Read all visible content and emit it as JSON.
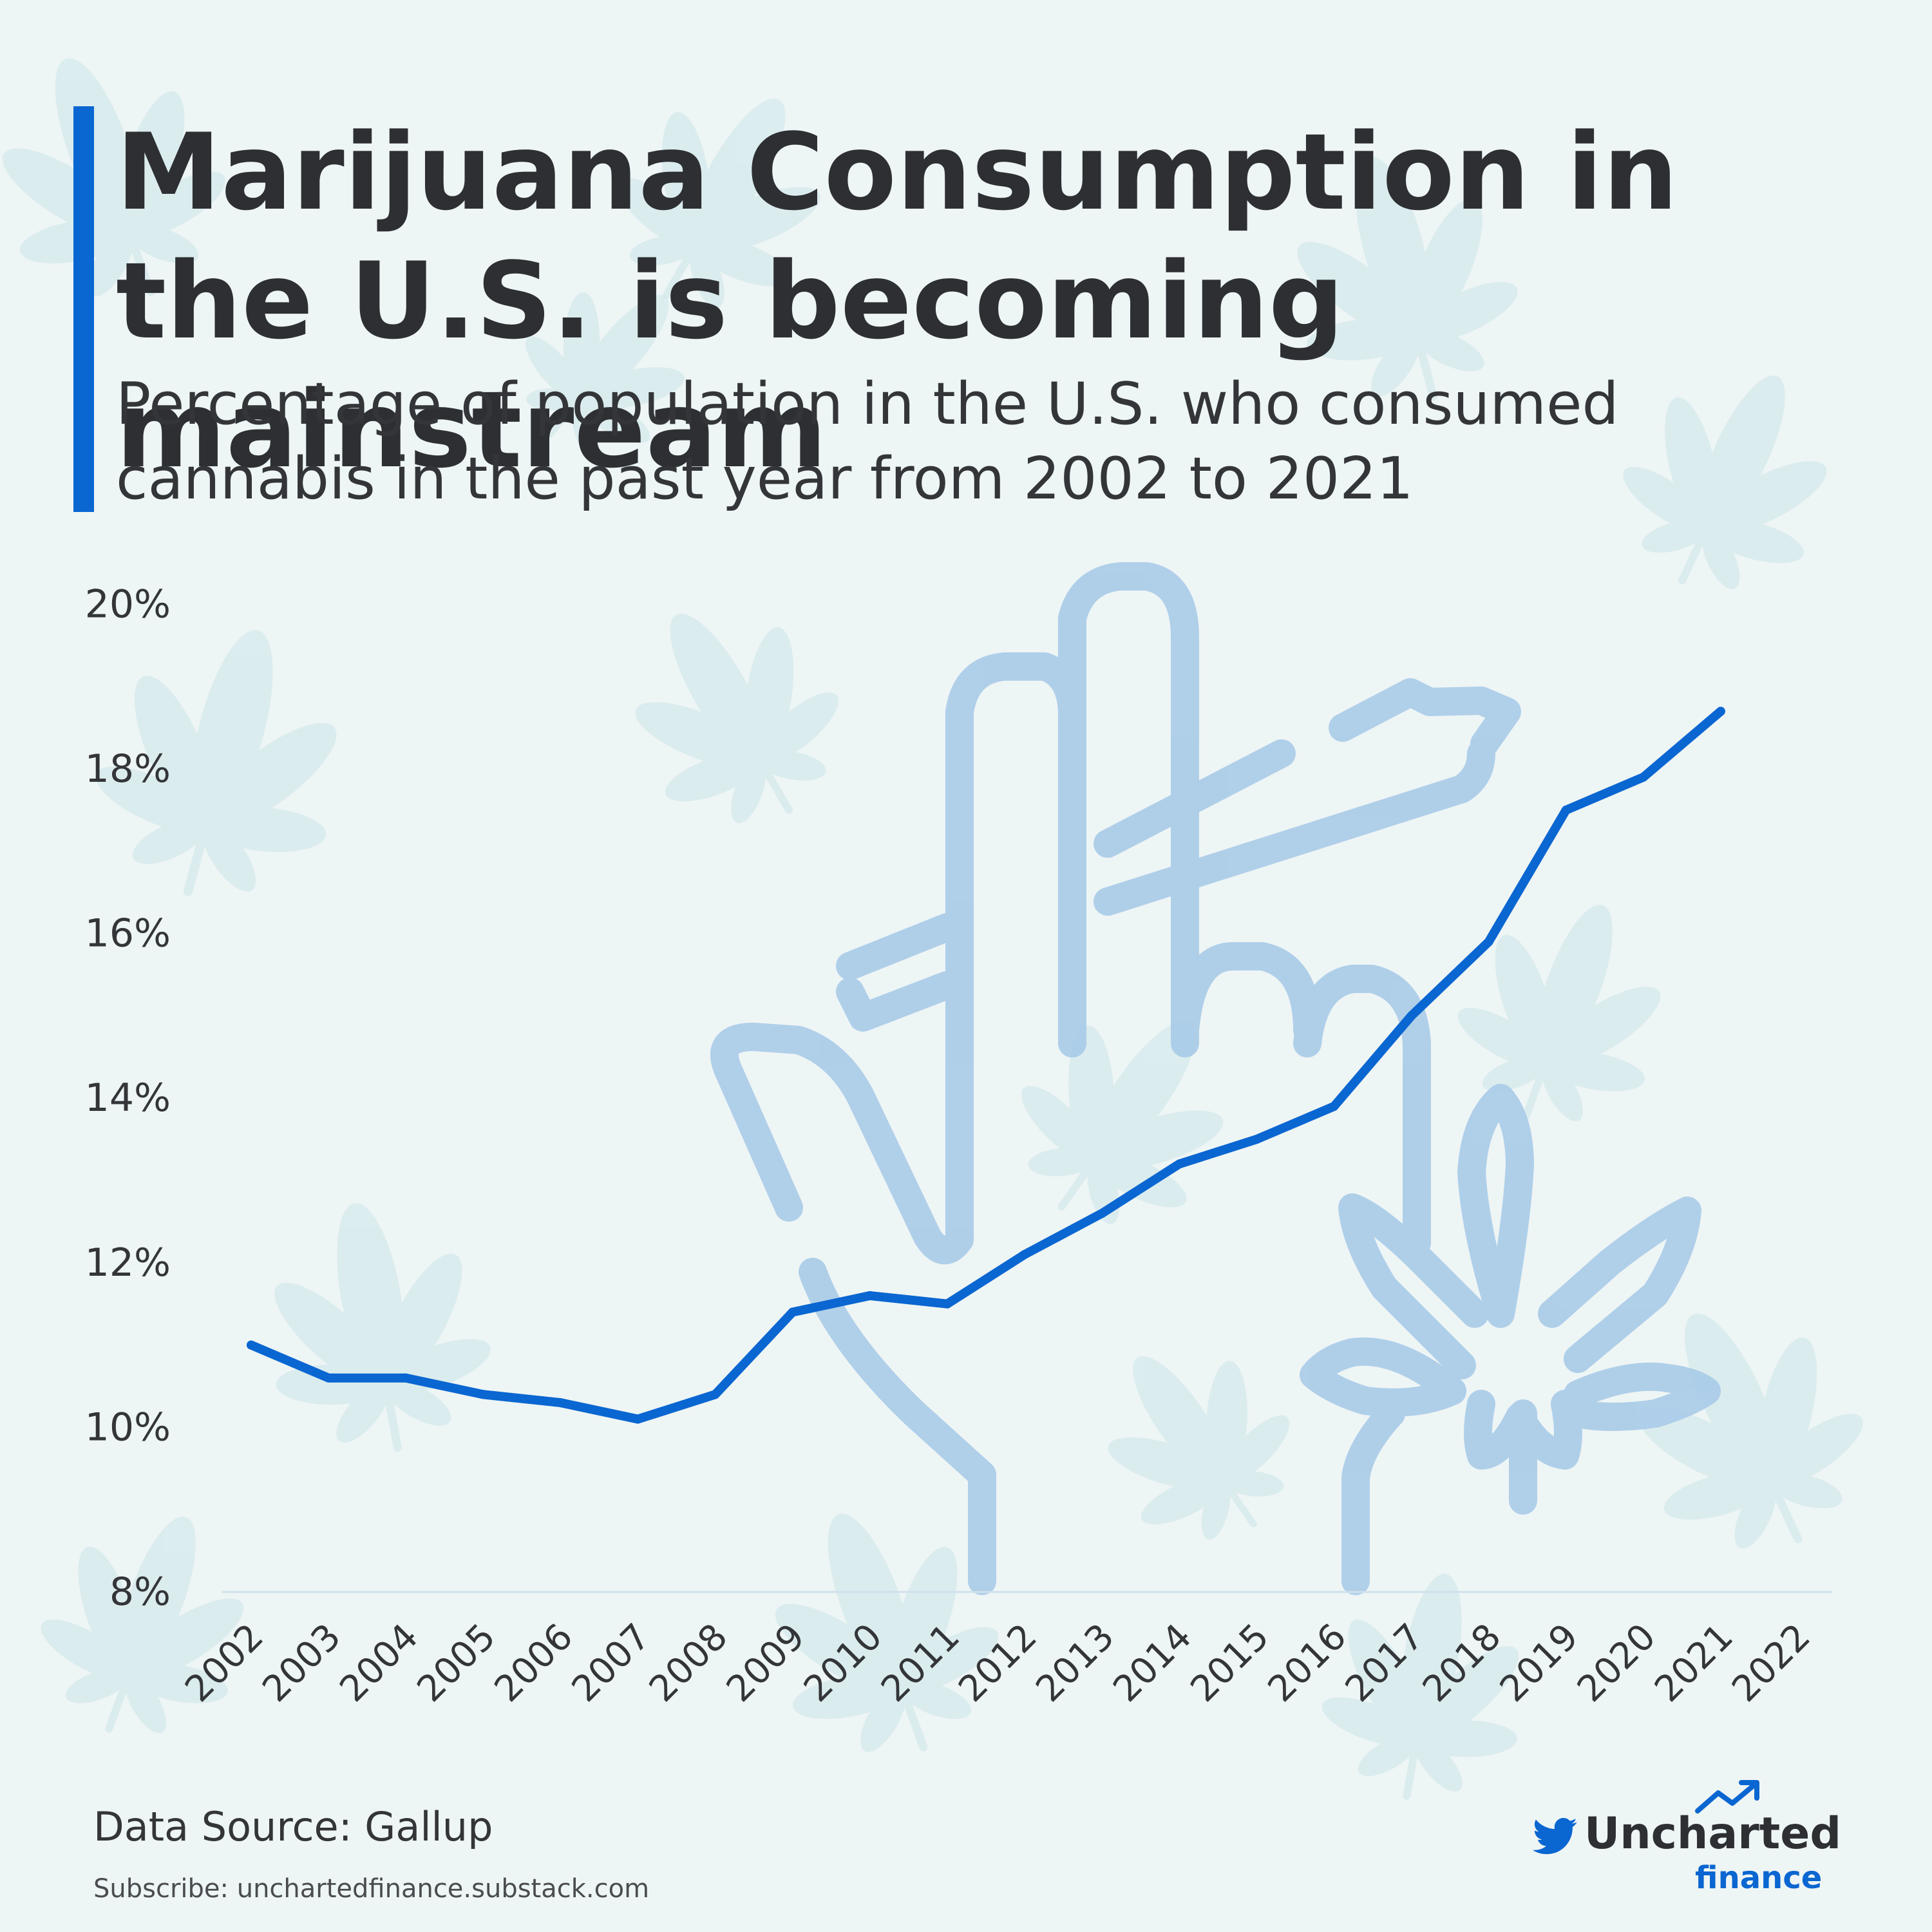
{
  "header": {
    "title": "Marijuana Consumption in the U.S. is becoming mainstream",
    "subtitle": "Percentage of population in the U.S. who consumed cannabis in the past year from 2002 to 2021"
  },
  "footer": {
    "source": "Data Source: Gallup",
    "subscribe": "Subscribe: unchartedfinance.substack.com"
  },
  "brand": {
    "name": "Uncharted",
    "sub": "finance",
    "icons": [
      "twitter-icon",
      "trend-arrow-icon"
    ]
  },
  "decor": {
    "background_icons": [
      "cannabis-leaf-icon"
    ],
    "illustration": "hand-holding-joint-with-cannabis-leaf-icon"
  },
  "colors": {
    "background": "#eef5f5",
    "line": "#0a66d1",
    "accent": "#0a66d1",
    "illustration": "#a9cbe8",
    "leaf_pattern": "#cde5ea",
    "text": "#2d2f33"
  },
  "chart_data": {
    "type": "line",
    "x": [
      "2002",
      "2003",
      "2004",
      "2005",
      "2006",
      "2007",
      "2008",
      "2009",
      "2010",
      "2011",
      "2012",
      "2013",
      "2014",
      "2015",
      "2016",
      "2017",
      "2018",
      "2019",
      "2020",
      "2021",
      "2022"
    ],
    "series": [
      {
        "values": [
          11.0,
          10.6,
          10.6,
          10.4,
          10.3,
          10.1,
          10.4,
          11.4,
          11.6,
          11.5,
          12.1,
          12.6,
          13.2,
          13.5,
          13.9,
          15.0,
          15.9,
          17.5,
          17.9,
          18.7,
          null
        ]
      }
    ],
    "y_ticks": [
      "8%",
      "10%",
      "12%",
      "14%",
      "16%",
      "18%",
      "20%"
    ],
    "ylim": [
      8,
      20
    ],
    "grid": false
  }
}
